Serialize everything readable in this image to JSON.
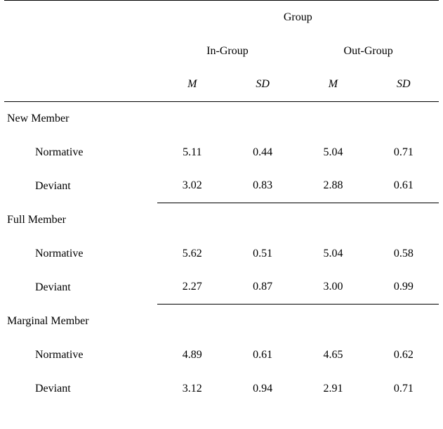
{
  "colors": {
    "background": "#ffffff",
    "text": "#000000",
    "rule": "#000000"
  },
  "typography": {
    "font_family": "Times New Roman",
    "base_size_pt": 12
  },
  "table": {
    "type": "table",
    "top_header": "Group",
    "subgroups": {
      "a": "In-Group",
      "b": "Out-Group"
    },
    "stat_labels": {
      "mean": "M",
      "sd": "SD"
    },
    "sections": [
      {
        "label": "New Member",
        "rows": [
          {
            "label": "Normative",
            "a": {
              "m": "5.11",
              "sd": "0.44"
            },
            "b": {
              "m": "5.04",
              "sd": "0.71"
            }
          },
          {
            "label": "Deviant",
            "a": {
              "m": "3.02",
              "sd": "0.83"
            },
            "b": {
              "m": "2.88",
              "sd": "0.61"
            }
          }
        ],
        "rule_after": true
      },
      {
        "label": "Full Member",
        "rows": [
          {
            "label": "Normative",
            "a": {
              "m": "5.62",
              "sd": "0.51"
            },
            "b": {
              "m": "5.04",
              "sd": "0.58"
            }
          },
          {
            "label": "Deviant",
            "a": {
              "m": "2.27",
              "sd": "0.87"
            },
            "b": {
              "m": "3.00",
              "sd": "0.99"
            }
          }
        ],
        "rule_after": true
      },
      {
        "label": "Marginal Member",
        "rows": [
          {
            "label": "Normative",
            "a": {
              "m": "4.89",
              "sd": "0.61"
            },
            "b": {
              "m": "4.65",
              "sd": "0.62"
            }
          },
          {
            "label": "Deviant",
            "a": {
              "m": "3.12",
              "sd": "0.94"
            },
            "b": {
              "m": "2.91",
              "sd": "0.71"
            }
          }
        ],
        "rule_after": false
      }
    ]
  }
}
